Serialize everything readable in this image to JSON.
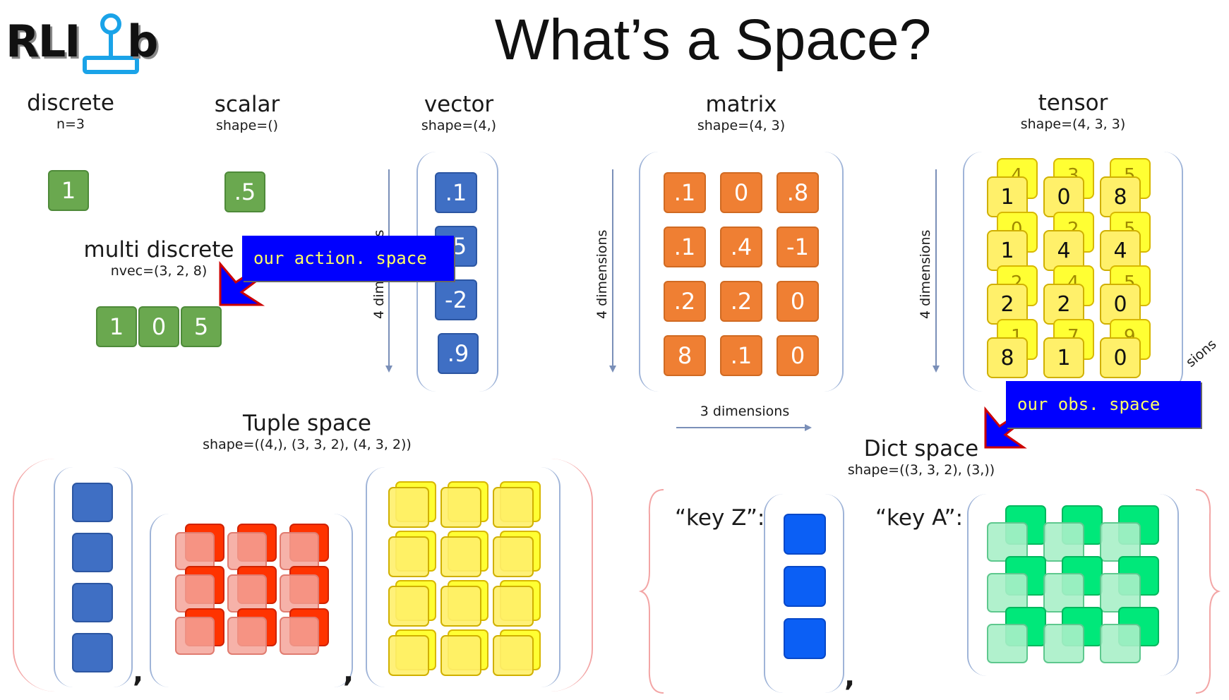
{
  "title": "What’s a Space?",
  "logo": {
    "text_left": "RLI",
    "text_right": "b",
    "icon": "joystick-icon"
  },
  "discrete": {
    "name": "discrete",
    "sub": "n=3",
    "value": "1"
  },
  "scalar": {
    "name": "scalar",
    "sub": "shape=()",
    "value": ".5"
  },
  "multi_discrete": {
    "name": "multi discrete",
    "sub": "nvec=(3, 2, 8)",
    "values": [
      "1",
      "0",
      "5"
    ]
  },
  "vector": {
    "name": "vector",
    "sub": "shape=(4,)",
    "values": [
      ".1",
      ".5",
      "-2",
      ".9"
    ],
    "dim_label": "4 dimensions"
  },
  "matrix": {
    "name": "matrix",
    "sub": "shape=(4, 3)",
    "values": [
      [
        ".1",
        "0",
        ".8"
      ],
      [
        ".1",
        ".4",
        "-1"
      ],
      [
        ".2",
        ".2",
        "0"
      ],
      [
        "8",
        ".1",
        "0"
      ]
    ],
    "dim_label_v": "4 dimensions",
    "dim_label_h": "3 dimensions"
  },
  "tensor": {
    "name": "tensor",
    "sub": "shape=(4, 3, 3)",
    "front": [
      [
        "1",
        "0",
        "8"
      ],
      [
        "1",
        "4",
        "4"
      ],
      [
        "2",
        "2",
        "0"
      ],
      [
        "8",
        "1",
        "0"
      ]
    ],
    "back": [
      [
        "4",
        "3",
        "5"
      ],
      [
        "0",
        "2",
        "5"
      ],
      [
        "2",
        "4",
        "5"
      ],
      [
        "1",
        "7",
        "9"
      ]
    ],
    "dim_label": "4 dimensions",
    "dim_label_diag": "sions"
  },
  "callouts": {
    "action": "our action. space",
    "obs": "our obs. space"
  },
  "tuple": {
    "name": "Tuple space",
    "sub": "shape=((4,), (3, 3, 2), (4, 3, 2))",
    "comma": ","
  },
  "dict": {
    "name": "Dict space",
    "sub": "shape=((3, 3, 2), (3,))",
    "key_z": "“key Z”:",
    "key_a": "“key A”:",
    "comma": ","
  },
  "colors": {
    "green": "#6aa84f",
    "blue": "#3f6fc4",
    "orange": "#ef7f33",
    "yellow": "#ffff33",
    "red": "#ff3300",
    "pink": "#f4a49a",
    "bright_blue": "#0b5ff5",
    "mint": "#00e87a",
    "pale_mint": "#a8f0c8",
    "callout_bg": "#0000ff",
    "callout_text": "#ffff66"
  }
}
